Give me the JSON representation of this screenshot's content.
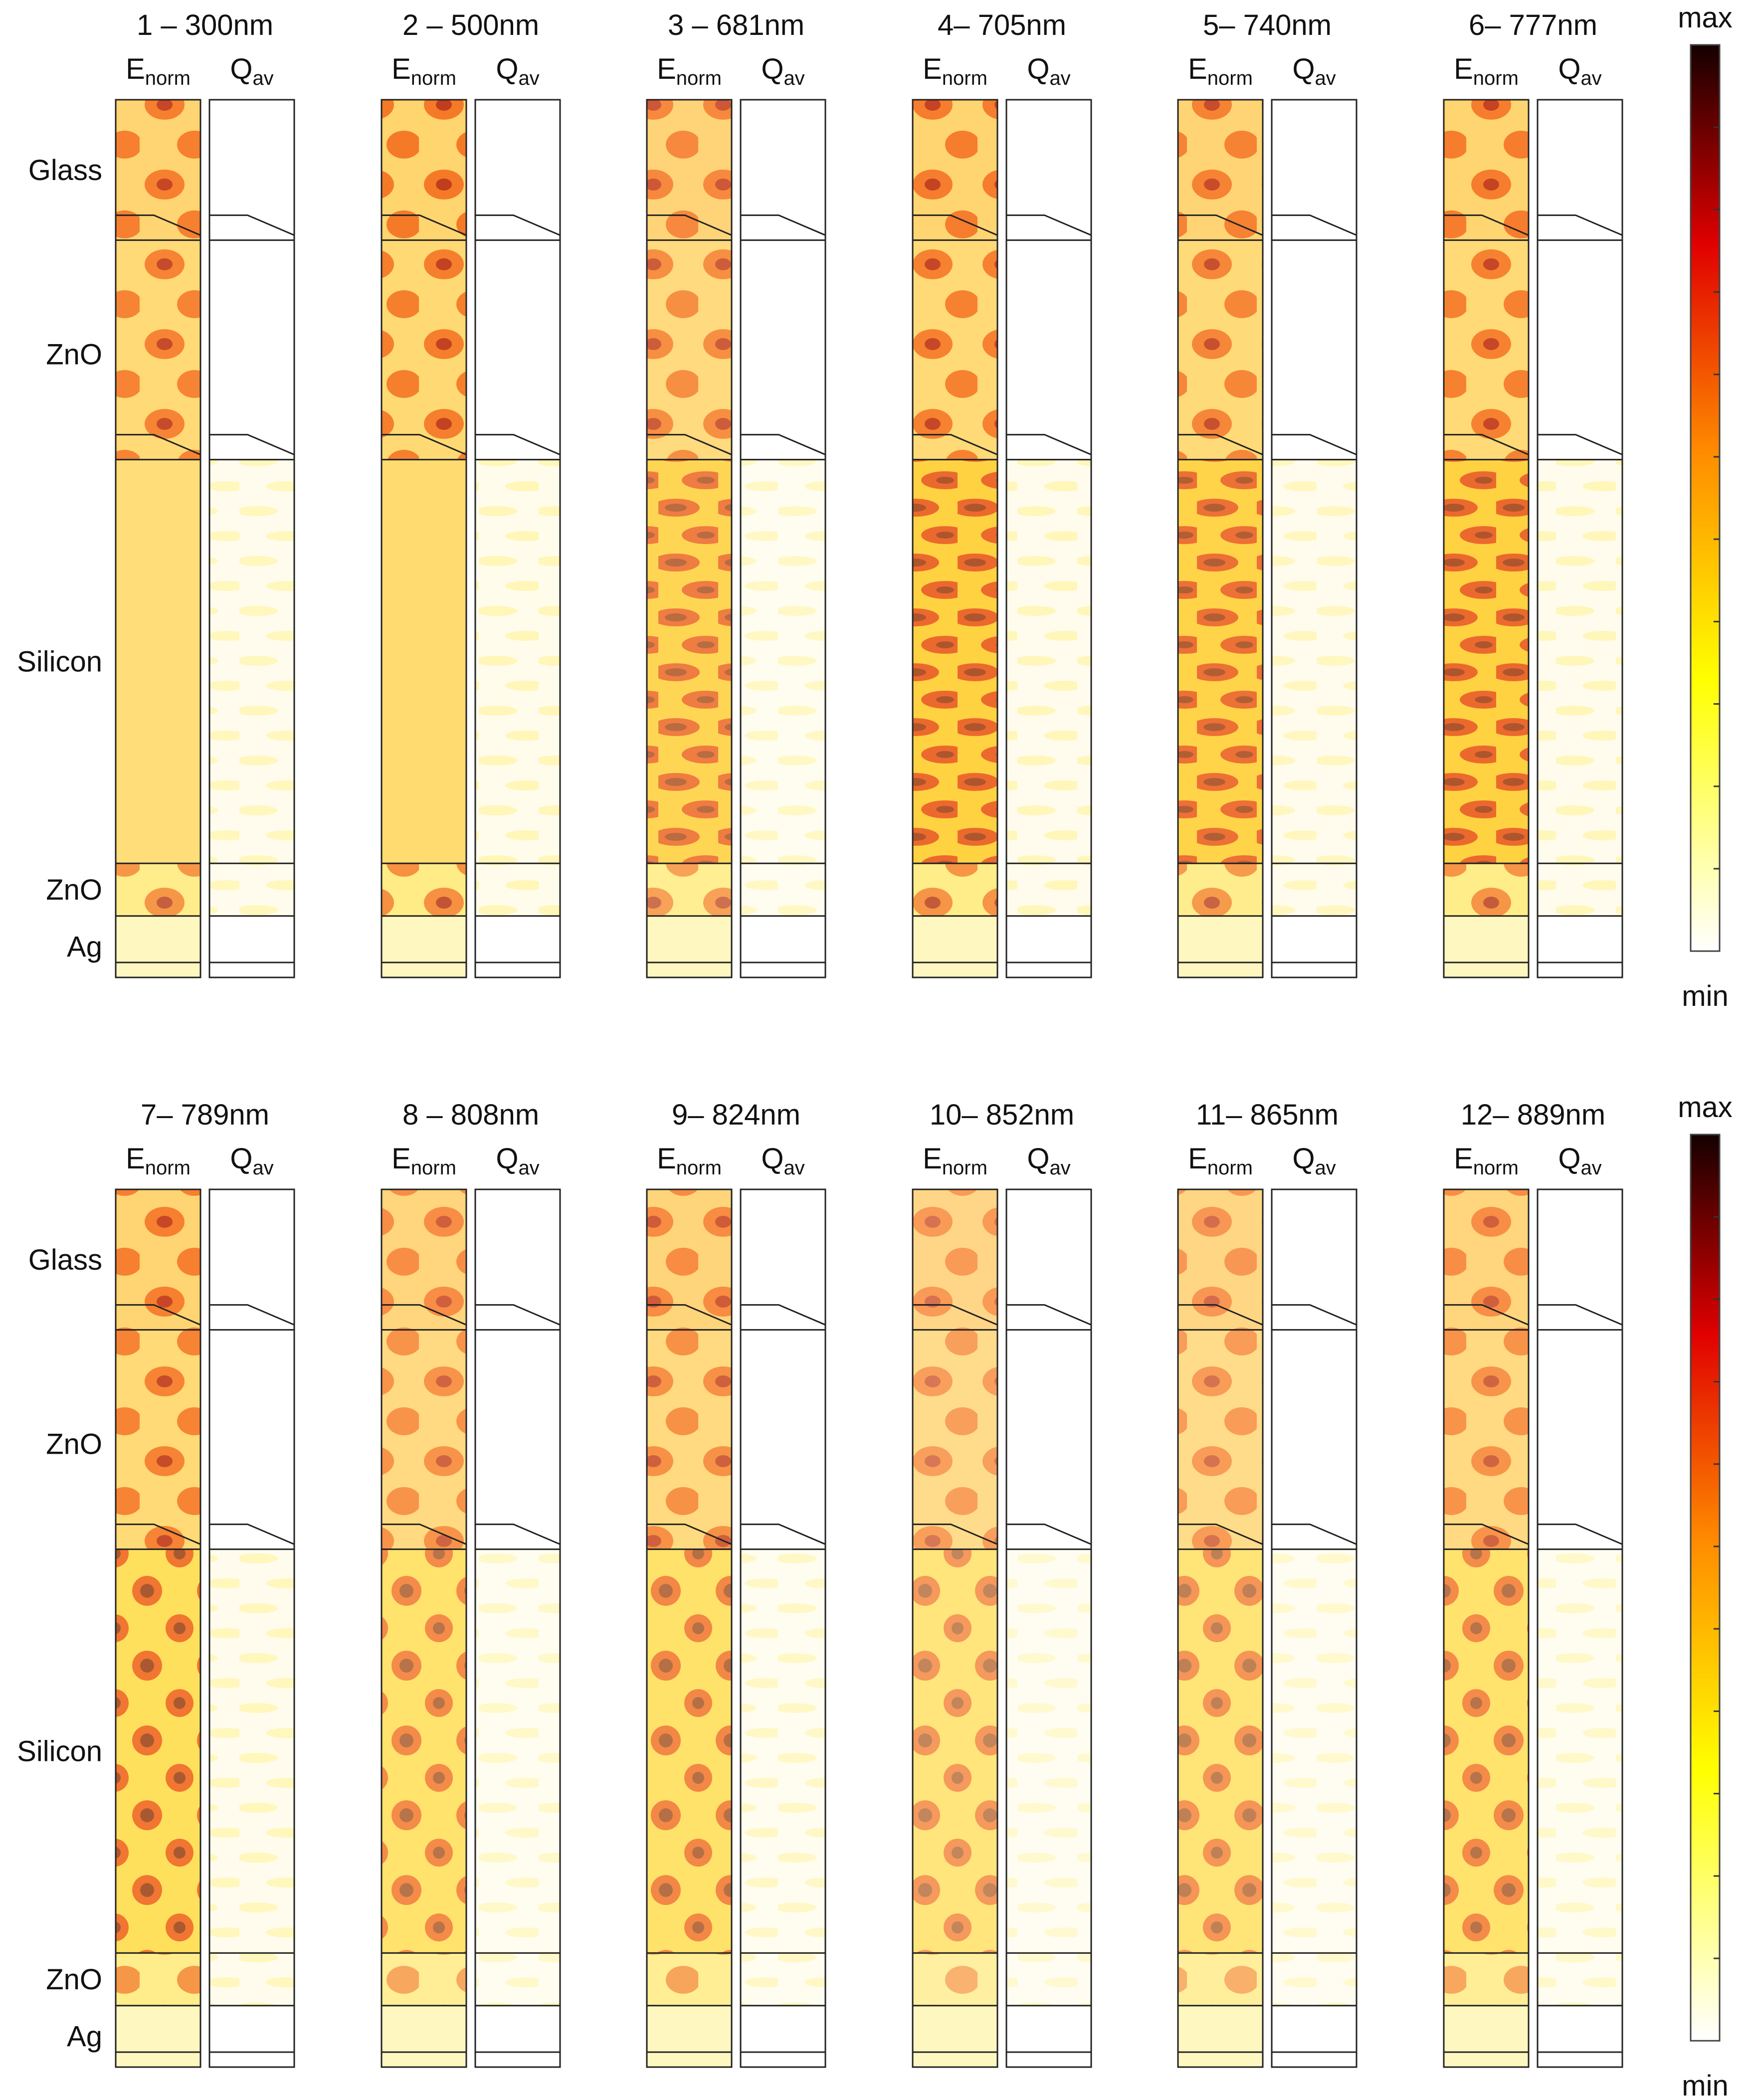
{
  "figure": {
    "rows": [
      {
        "panels": [
          {
            "title": "1 – 300nm",
            "intensity": 0.7,
            "field": "e1"
          },
          {
            "title": "2 – 500nm",
            "intensity": 0.75,
            "field": "e2"
          },
          {
            "title": "3 – 681nm",
            "intensity": 0.62,
            "field": "e3"
          },
          {
            "title": "4– 705nm",
            "intensity": 0.72,
            "field": "e4"
          },
          {
            "title": "5– 740nm",
            "intensity": 0.68,
            "field": "e5"
          },
          {
            "title": "6– 777nm",
            "intensity": 0.72,
            "field": "e6"
          }
        ]
      },
      {
        "panels": [
          {
            "title": "7– 789nm",
            "intensity": 0.7,
            "field": "e7"
          },
          {
            "title": "8 – 808nm",
            "intensity": 0.58,
            "field": "e8"
          },
          {
            "title": "9– 824nm",
            "intensity": 0.6,
            "field": "e9"
          },
          {
            "title": "10– 852nm",
            "intensity": 0.5,
            "field": "e10"
          },
          {
            "title": "11– 865nm",
            "intensity": 0.52,
            "field": "e11"
          },
          {
            "title": "12– 889nm",
            "intensity": 0.58,
            "field": "e12"
          }
        ]
      }
    ],
    "sub_e": {
      "base": "E",
      "sub": "norm"
    },
    "sub_q": {
      "base": "Q",
      "sub": "av"
    },
    "layers": [
      "Glass",
      "ZnO",
      "Silicon",
      "ZnO",
      "Ag"
    ],
    "colorbar": {
      "max": "max",
      "min": "min"
    },
    "colors": {
      "low": "#ffffff",
      "yellow": "#ffff00",
      "orange": "#ff8c00",
      "red": "#e00000",
      "dark": "#150000"
    }
  }
}
